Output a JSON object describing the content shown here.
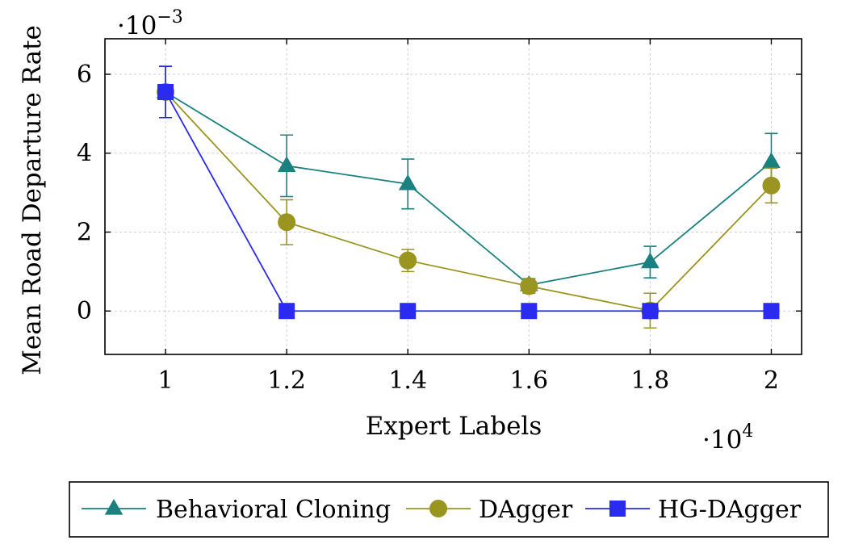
{
  "chart_data": {
    "type": "line",
    "title": "",
    "xlabel": "Expert Labels",
    "ylabel": "Mean Road Departure Rate",
    "x_multiplier_label": "·10",
    "x_multiplier_exp": "4",
    "y_multiplier_label": "·10",
    "y_multiplier_exp": "−3",
    "xlim": [
      0.9,
      2.05
    ],
    "ylim": [
      -1.1,
      6.9
    ],
    "x_ticks": [
      1,
      1.2,
      1.4,
      1.6,
      1.8,
      2
    ],
    "x_tick_labels": [
      "1",
      "1.2",
      "1.4",
      "1.6",
      "1.8",
      "2"
    ],
    "y_ticks": [
      0,
      2,
      4,
      6
    ],
    "y_tick_labels": [
      "0",
      "2",
      "4",
      "6"
    ],
    "grid": true,
    "legend_position": "bottom",
    "series": [
      {
        "name": "Behavioral Cloning",
        "color": "#1a8080",
        "marker": "triangle",
        "x": [
          1,
          1.2,
          1.4,
          1.6,
          1.8,
          2
        ],
        "y": [
          5.55,
          3.68,
          3.22,
          0.66,
          1.24,
          3.78
        ],
        "err": [
          0.65,
          0.78,
          0.63,
          0.16,
          0.4,
          0.72
        ]
      },
      {
        "name": "DAgger",
        "color": "#9a9520",
        "marker": "circle",
        "x": [
          1,
          1.2,
          1.4,
          1.6,
          1.8,
          2
        ],
        "y": [
          5.55,
          2.25,
          1.28,
          0.63,
          0.01,
          3.18
        ],
        "err": [
          0.65,
          0.57,
          0.28,
          0.18,
          0.44,
          0.44
        ]
      },
      {
        "name": "HG-DAgger",
        "color": "#2a2af0",
        "marker": "square",
        "x": [
          1,
          1.2,
          1.4,
          1.6,
          1.8,
          2
        ],
        "y": [
          5.55,
          0,
          0,
          0,
          0,
          0
        ],
        "err": [
          0.65,
          0,
          0,
          0,
          0,
          0
        ]
      }
    ]
  }
}
